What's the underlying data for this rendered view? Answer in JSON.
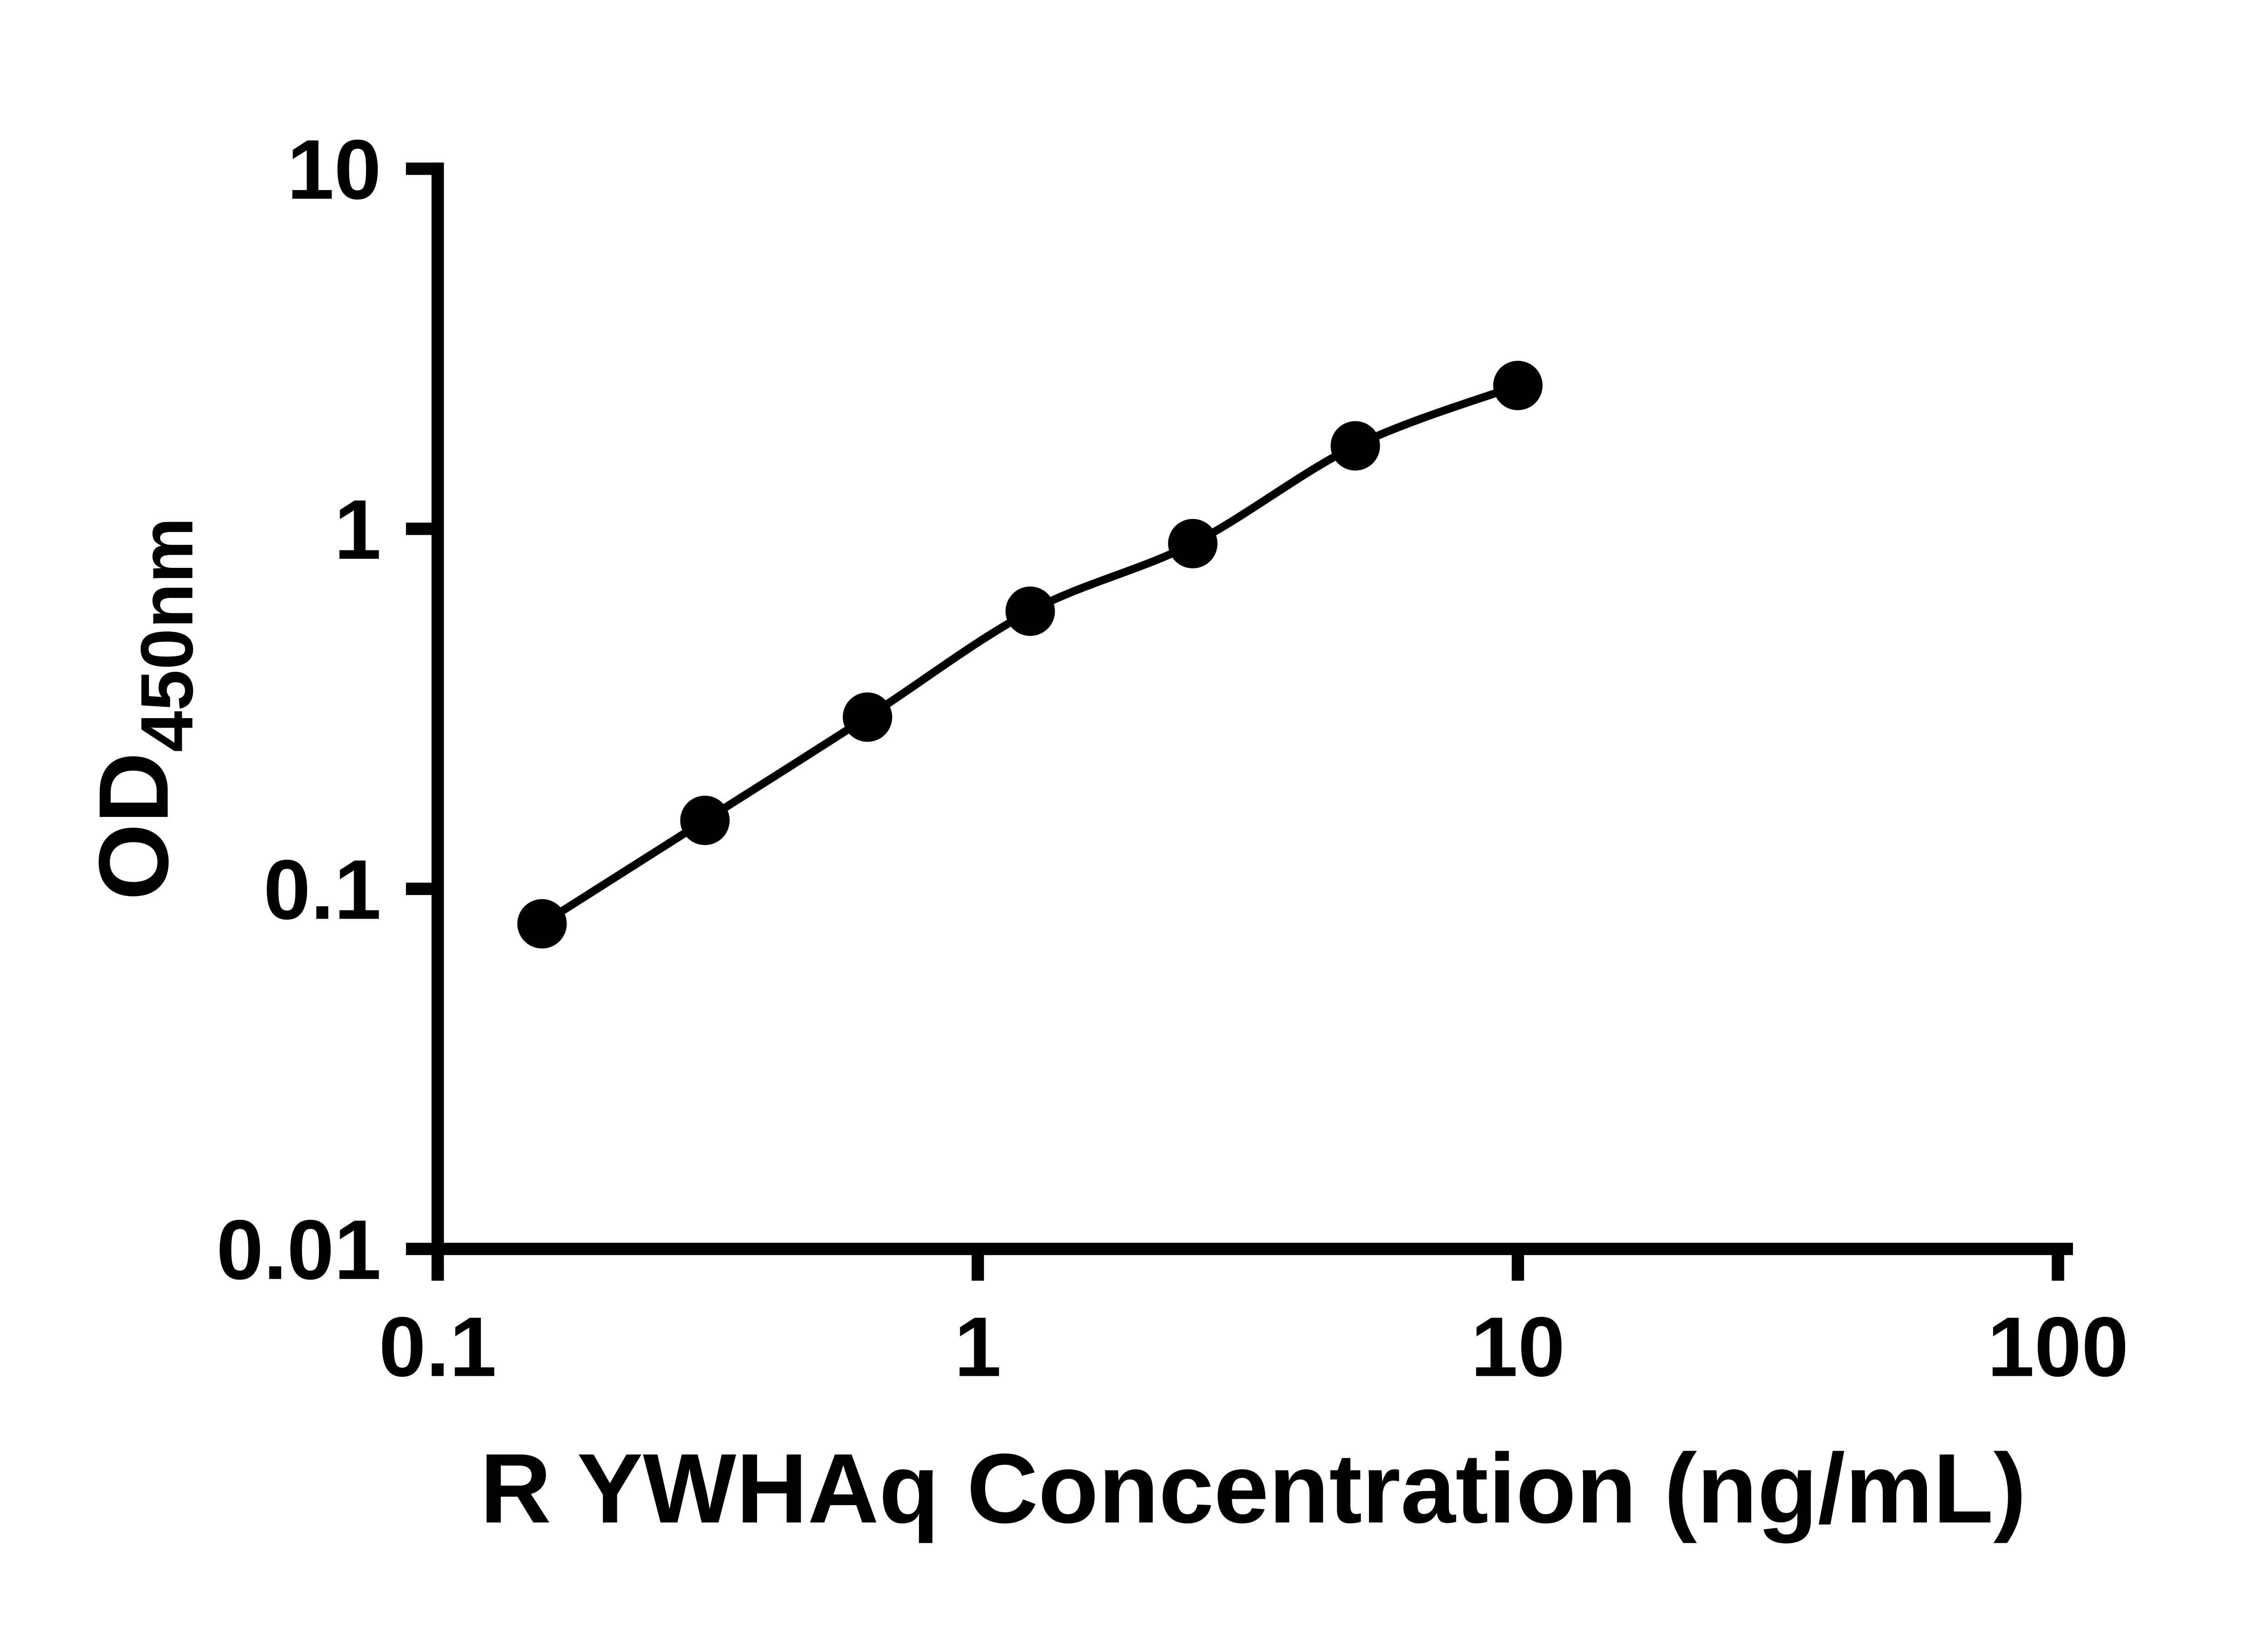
{
  "page": {
    "background_color": "#ffffff",
    "foreground_color": "#000000"
  },
  "chart_data": {
    "type": "line",
    "title": "",
    "xlabel": "R YWHAq Concentration (ng/mL)",
    "ylabel_text": "OD450nm",
    "ylabel_base": "OD",
    "ylabel_sub": "450nm",
    "xscale": "log",
    "yscale": "log",
    "xlim": [
      0.1,
      100
    ],
    "ylim": [
      0.01,
      10
    ],
    "x_tick_values": [
      0.1,
      1,
      10,
      100
    ],
    "x_tick_labels": [
      "0.1",
      "1",
      "10",
      "100"
    ],
    "y_tick_values": [
      0.01,
      0.1,
      1,
      10
    ],
    "y_tick_labels": [
      "0.01",
      "0.1",
      "1",
      "10"
    ],
    "grid": false,
    "legend_position": "none",
    "marker": "filled-circle",
    "series": [
      {
        "color": "#000000",
        "points": [
          {
            "x": 0.156,
            "y": 0.08
          },
          {
            "x": 0.3125,
            "y": 0.155
          },
          {
            "x": 0.625,
            "y": 0.3
          },
          {
            "x": 1.25,
            "y": 0.59
          },
          {
            "x": 2.5,
            "y": 0.91
          },
          {
            "x": 5.0,
            "y": 1.7
          },
          {
            "x": 10.0,
            "y": 2.5
          }
        ]
      }
    ]
  }
}
